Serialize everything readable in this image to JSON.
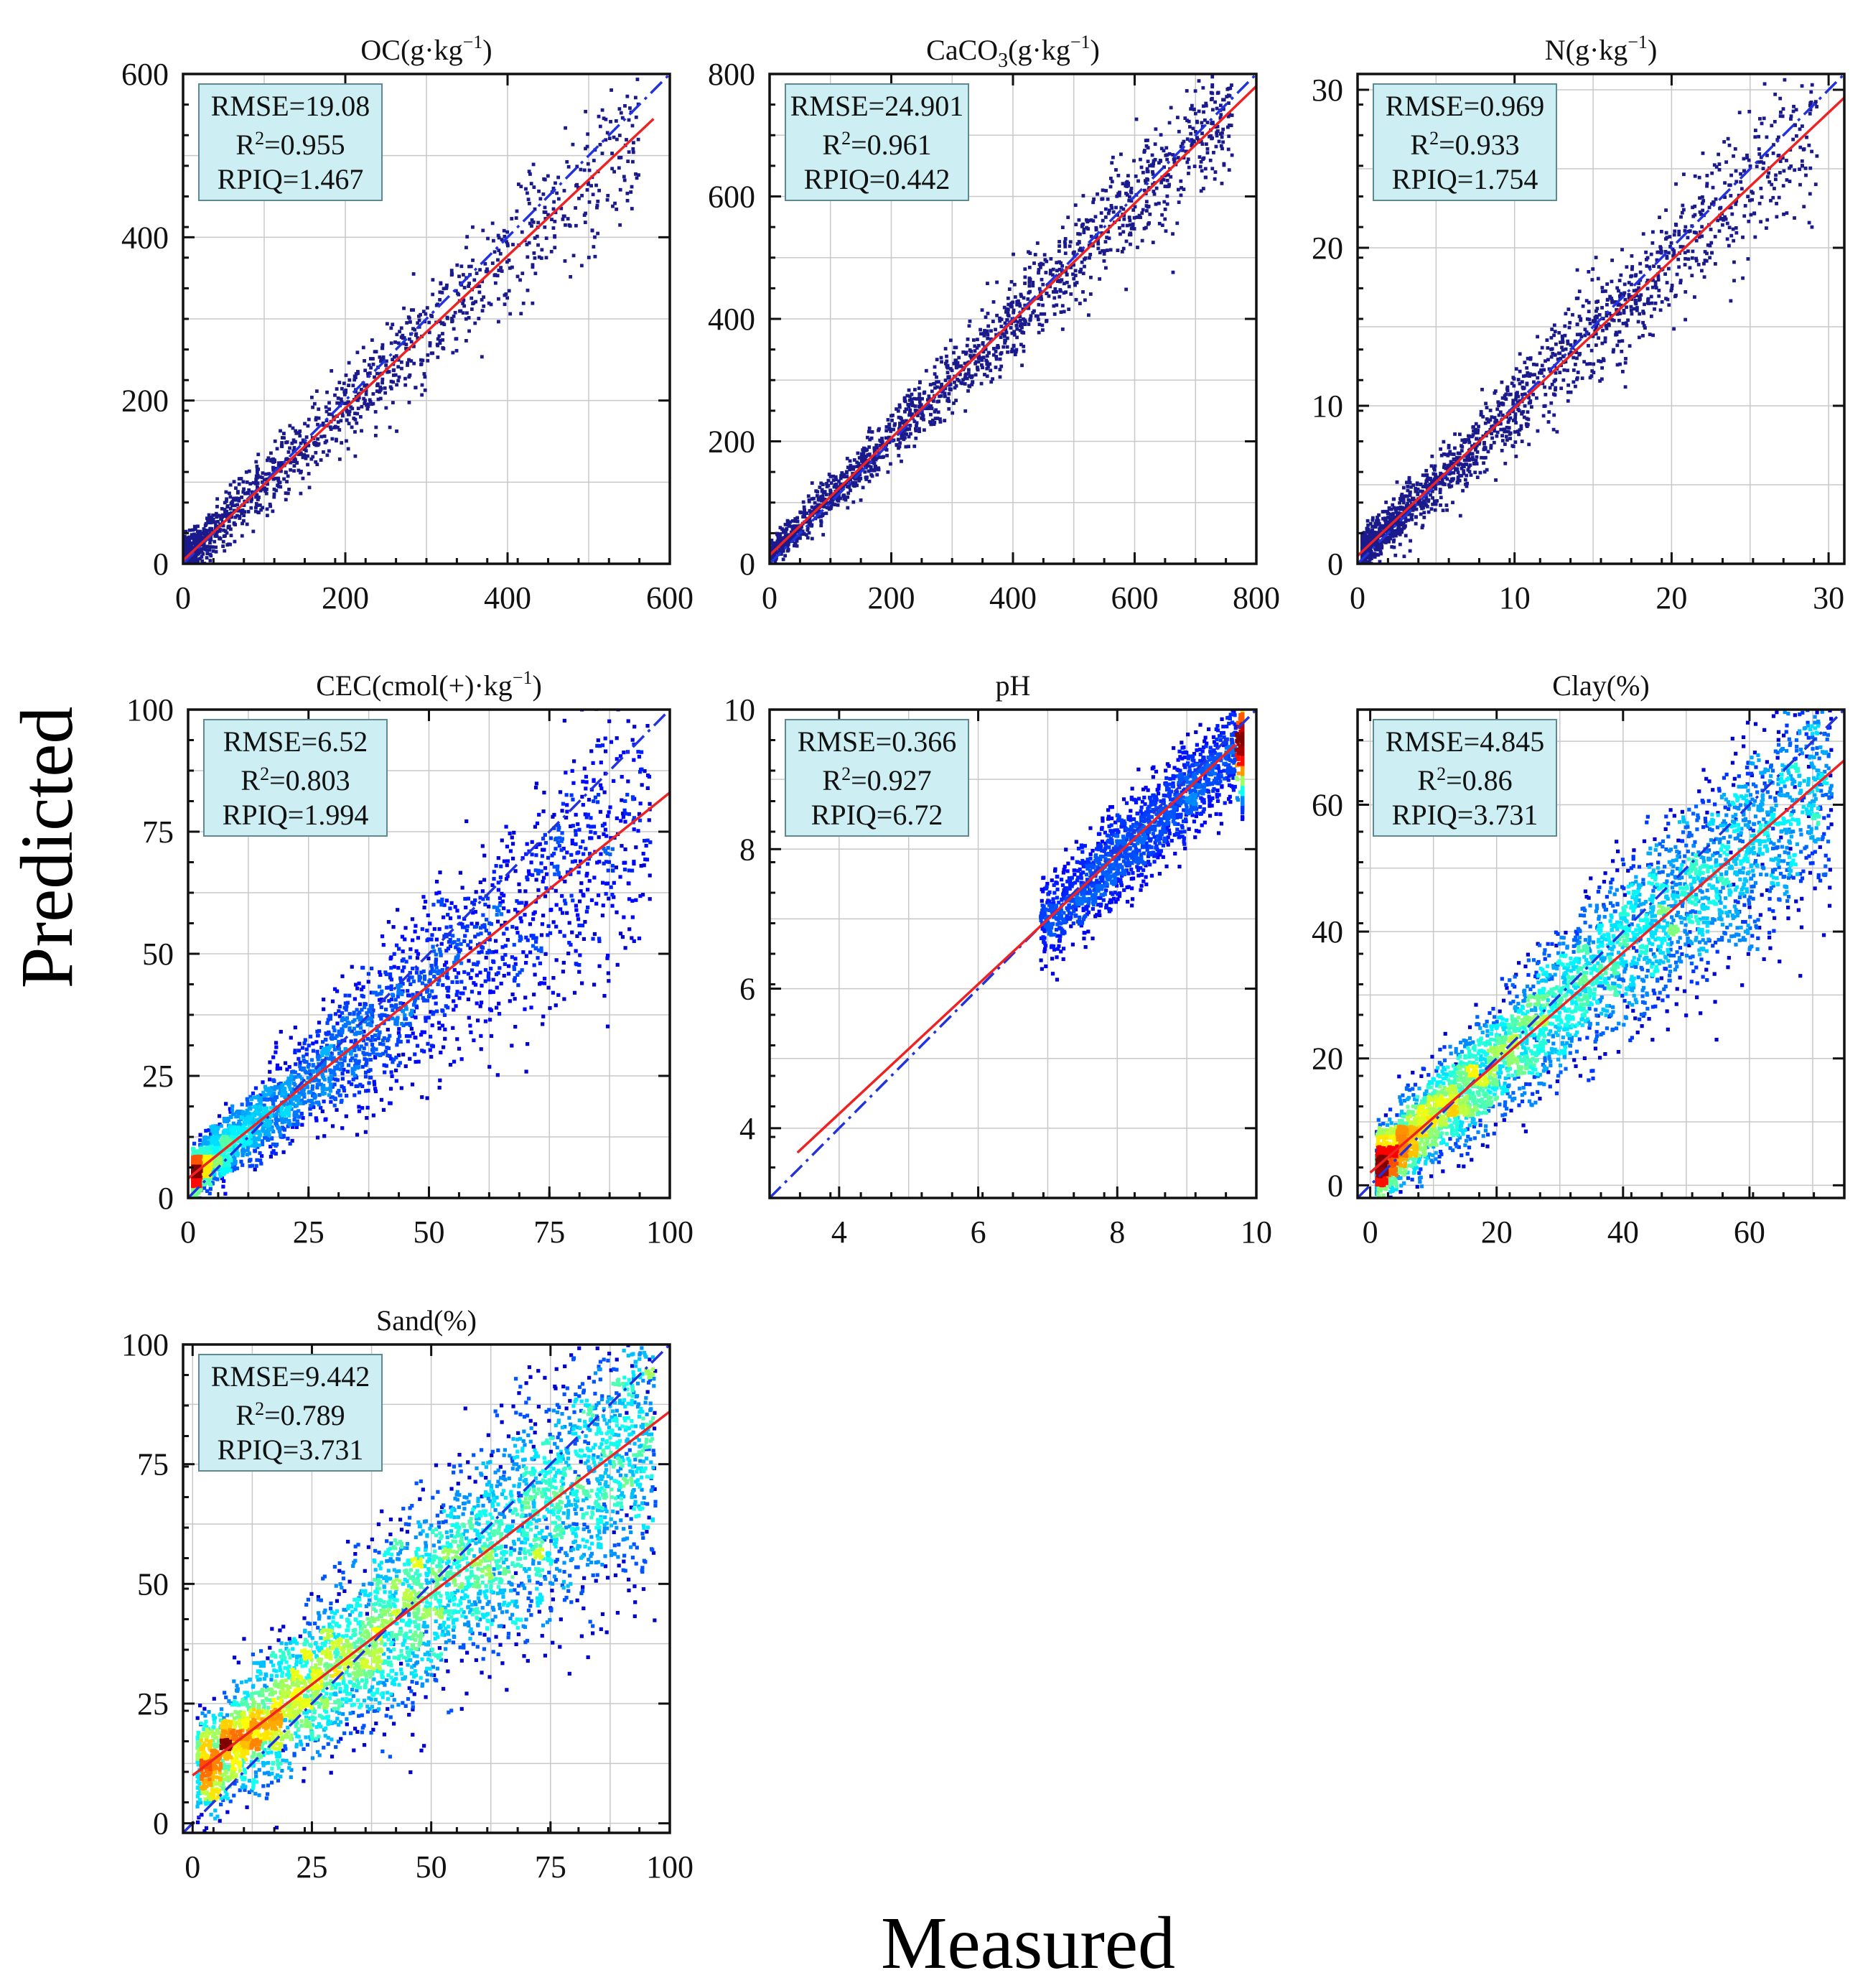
{
  "figure": {
    "xlabel": "Measured",
    "ylabel": "Predicted"
  },
  "colors": {
    "fit_line": "#ee2222",
    "one_to_one": "#2233dd",
    "stats_box": "#cdeef2",
    "sparse_point": "#1a1a8c",
    "density_scale": [
      "#00007f",
      "#0000ff",
      "#00a0ff",
      "#28ffd0",
      "#ffff00",
      "#ff8000",
      "#e00000",
      "#7f0000"
    ]
  },
  "chart_data": [
    {
      "type": "scatter",
      "title_main": "OC",
      "title_units": "(g·kg",
      "title_sup": "−1",
      "title_close": ")",
      "xlabel": "Measured",
      "ylabel": "Predicted",
      "xlim": [
        0,
        600
      ],
      "ylim": [
        0,
        600
      ],
      "xticks": [
        0,
        200,
        400,
        600
      ],
      "yticks": [
        0,
        200,
        400,
        600
      ],
      "grid_step": 100,
      "stats": {
        "rmse": "RMSE=19.08",
        "r2_prefix": "R",
        "r2_sup": "2",
        "r2_value": "=0.955",
        "rpiq": "RPIQ=1.467"
      },
      "fit_line": [
        [
          0,
          4
        ],
        [
          580,
          545
        ]
      ],
      "one_to_one": [
        [
          0,
          0
        ],
        [
          600,
          600
        ]
      ],
      "density": false,
      "points": 1300
    },
    {
      "type": "scatter",
      "title_main": "CaCO",
      "title_sub": "3",
      "title_units": "(g·kg",
      "title_sup": "−1",
      "title_close": ")",
      "xlabel": "Measured",
      "ylabel": "Predicted",
      "xlim": [
        0,
        800
      ],
      "ylim": [
        0,
        800
      ],
      "xticks": [
        0,
        200,
        400,
        600,
        800
      ],
      "yticks": [
        0,
        200,
        400,
        600,
        800
      ],
      "grid_step": 100,
      "stats": {
        "rmse": "RMSE=24.901",
        "r2_prefix": "R",
        "r2_sup": "2",
        "r2_value": "=0.961",
        "rpiq": "RPIQ=0.442"
      },
      "fit_line": [
        [
          0,
          14
        ],
        [
          800,
          780
        ]
      ],
      "one_to_one": [
        [
          0,
          0
        ],
        [
          800,
          800
        ]
      ],
      "density": false,
      "points": 1500
    },
    {
      "type": "scatter",
      "title_main": "N",
      "title_units": "(g·kg",
      "title_sup": "−1",
      "title_close": ")",
      "xlabel": "Measured",
      "ylabel": "Predicted",
      "xlim": [
        0,
        31
      ],
      "ylim": [
        0,
        31
      ],
      "xticks": [
        0,
        10,
        20,
        30
      ],
      "yticks": [
        0,
        10,
        20,
        30
      ],
      "grid_step": 5,
      "stats": {
        "rmse": "RMSE=0.969",
        "r2_prefix": "R",
        "r2_sup": "2",
        "r2_value": "=0.933",
        "rpiq": "RPIQ=1.754"
      },
      "fit_line": [
        [
          0,
          0.5
        ],
        [
          31,
          29.5
        ]
      ],
      "one_to_one": [
        [
          0,
          0
        ],
        [
          31,
          31
        ]
      ],
      "density": false,
      "points": 1700
    },
    {
      "type": "scatter",
      "title_main": "CEC(cmol(+)·kg",
      "title_sup": "−1",
      "title_close": ")",
      "xlabel": "Measured",
      "ylabel": "Predicted",
      "xlim": [
        0,
        100
      ],
      "ylim": [
        0,
        100
      ],
      "xticks": [
        0,
        25,
        50,
        75,
        100
      ],
      "yticks": [
        0,
        25,
        50,
        75,
        100
      ],
      "grid_step": 12.5,
      "stats": {
        "rmse": "RMSE=6.52",
        "r2_prefix": "R",
        "r2_sup": "2",
        "r2_value": "=0.803",
        "rpiq": "RPIQ=1.994"
      },
      "fit_line": [
        [
          0,
          4
        ],
        [
          100,
          83
        ]
      ],
      "one_to_one": [
        [
          0,
          0
        ],
        [
          100,
          100
        ]
      ],
      "density": true,
      "points": 3200
    },
    {
      "type": "scatter",
      "title_main": "pH",
      "xlabel": "Measured",
      "ylabel": "Predicted",
      "xlim": [
        3,
        10
      ],
      "ylim": [
        3,
        10
      ],
      "xticks": [
        4,
        6,
        8,
        10
      ],
      "yticks": [
        4,
        6,
        8,
        10
      ],
      "grid_step": 1,
      "stats": {
        "rmse": "RMSE=0.366",
        "r2_prefix": "R",
        "r2_sup": "2",
        "r2_value": "=0.927",
        "rpiq": "RPIQ=6.72"
      },
      "fit_line": [
        [
          3.4,
          3.65
        ],
        [
          9.7,
          9.5
        ]
      ],
      "one_to_one": [
        [
          3,
          3
        ],
        [
          10,
          10
        ]
      ],
      "density": true,
      "points": 4500
    },
    {
      "type": "scatter",
      "title_main": "Clay(%)",
      "xlabel": "Measured",
      "ylabel": "Predicted",
      "xlim": [
        -2,
        75
      ],
      "ylim": [
        -2,
        75
      ],
      "xticks": [
        0,
        20,
        40,
        60
      ],
      "yticks": [
        0,
        20,
        40,
        60
      ],
      "grid_step": 10,
      "stats": {
        "rmse": "RMSE=4.845",
        "r2_prefix": "R",
        "r2_sup": "2",
        "r2_value": "=0.86",
        "rpiq": "RPIQ=3.731"
      },
      "fit_line": [
        [
          0,
          2
        ],
        [
          75,
          67
        ]
      ],
      "one_to_one": [
        [
          -2,
          -2
        ],
        [
          75,
          75
        ]
      ],
      "density": true,
      "points": 4500
    },
    {
      "type": "scatter",
      "title_main": "Sand(%)",
      "xlabel": "Measured",
      "ylabel": "Predicted",
      "xlim": [
        -2,
        100
      ],
      "ylim": [
        -2,
        100
      ],
      "xticks": [
        0,
        25,
        50,
        75,
        100
      ],
      "yticks": [
        0,
        25,
        50,
        75,
        100
      ],
      "grid_step": 12.5,
      "stats": {
        "rmse": "RMSE=9.442",
        "r2_prefix": "R",
        "r2_sup": "2",
        "r2_value": "=0.789",
        "rpiq": "RPIQ=3.731"
      },
      "fit_line": [
        [
          0,
          10
        ],
        [
          100,
          86
        ]
      ],
      "one_to_one": [
        [
          -2,
          -2
        ],
        [
          100,
          100
        ]
      ],
      "density": true,
      "points": 4500
    }
  ]
}
